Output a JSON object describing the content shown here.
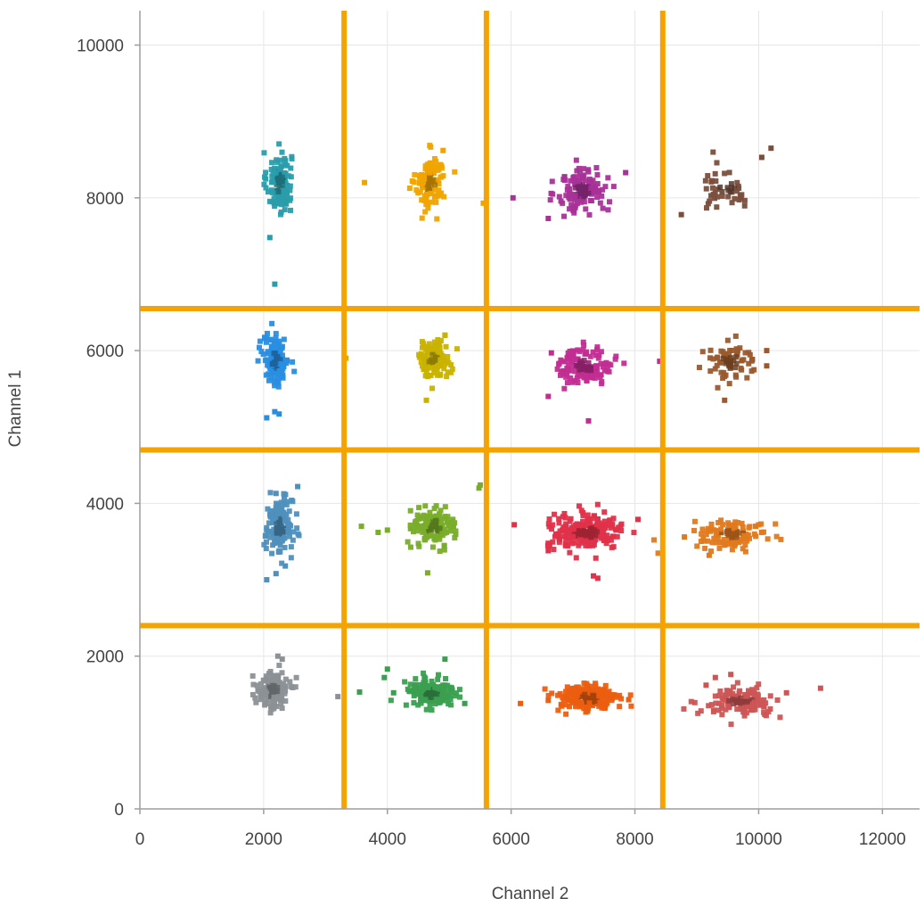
{
  "chart_data": {
    "type": "scatter",
    "title": "",
    "xlabel": "Channel 2",
    "ylabel": "Channel 1",
    "xlim": [
      0,
      12600
    ],
    "ylim": [
      0,
      10450
    ],
    "x_ticks": [
      0,
      2000,
      4000,
      6000,
      8000,
      10000,
      12000
    ],
    "y_ticks": [
      0,
      2000,
      4000,
      6000,
      8000,
      10000
    ],
    "grid": true,
    "legend": "none",
    "threshold_color": "#f5a300",
    "vertical_thresholds": [
      3300,
      5600,
      8450
    ],
    "horizontal_thresholds": [
      2400,
      4700,
      6550
    ],
    "clusters": [
      {
        "cx": 2250,
        "cy": 8200,
        "sx": 100,
        "sy": 200,
        "n": 130,
        "color": "#2a9dab",
        "outliers": [
          [
            2100,
            7480
          ],
          [
            2180,
            6870
          ]
        ]
      },
      {
        "cx": 4700,
        "cy": 8200,
        "sx": 120,
        "sy": 180,
        "n": 110,
        "color": "#f0a400",
        "outliers": [
          [
            3630,
            8200
          ],
          [
            5550,
            7930
          ],
          [
            4900,
            8620
          ]
        ]
      },
      {
        "cx": 7150,
        "cy": 8100,
        "sx": 200,
        "sy": 150,
        "n": 130,
        "color": "#a83298",
        "outliers": [
          [
            6030,
            8000
          ],
          [
            6600,
            7730
          ],
          [
            7850,
            8330
          ]
        ]
      },
      {
        "cx": 9500,
        "cy": 8150,
        "sx": 220,
        "sy": 160,
        "n": 45,
        "color": "#7a4e3c",
        "outliers": [
          [
            10200,
            8650
          ],
          [
            10050,
            8530
          ],
          [
            8750,
            7780
          ]
        ]
      },
      {
        "cx": 2200,
        "cy": 5870,
        "sx": 100,
        "sy": 160,
        "n": 150,
        "color": "#2a8ee0",
        "outliers": [
          [
            2050,
            5120
          ],
          [
            2250,
            5170
          ],
          [
            2180,
            5200
          ]
        ]
      },
      {
        "cx": 4750,
        "cy": 5900,
        "sx": 130,
        "sy": 120,
        "n": 110,
        "color": "#c9b300",
        "outliers": [
          [
            4630,
            5350
          ],
          [
            4930,
            6200
          ],
          [
            3330,
            5900
          ]
        ]
      },
      {
        "cx": 7200,
        "cy": 5800,
        "sx": 220,
        "sy": 120,
        "n": 140,
        "color": "#c22d92",
        "outliers": [
          [
            8400,
            5860
          ],
          [
            7250,
            5080
          ],
          [
            6600,
            5400
          ],
          [
            6650,
            5970
          ]
        ]
      },
      {
        "cx": 9550,
        "cy": 5850,
        "sx": 220,
        "sy": 120,
        "n": 70,
        "color": "#9a5a2e",
        "outliers": [
          [
            10130,
            5800
          ],
          [
            9450,
            5350
          ],
          [
            10130,
            6000
          ]
        ]
      },
      {
        "cx": 2250,
        "cy": 3700,
        "sx": 110,
        "sy": 180,
        "n": 150,
        "color": "#4f90bd",
        "outliers": [
          [
            2050,
            3000
          ],
          [
            2200,
            3080
          ],
          [
            2350,
            3180
          ],
          [
            2550,
            4220
          ],
          [
            2200,
            4130
          ]
        ]
      },
      {
        "cx": 4750,
        "cy": 3700,
        "sx": 170,
        "sy": 120,
        "n": 140,
        "color": "#79ad2a",
        "outliers": [
          [
            3580,
            3700
          ],
          [
            3850,
            3620
          ],
          [
            4000,
            3650
          ],
          [
            4650,
            3090
          ],
          [
            5480,
            4200
          ],
          [
            5500,
            4240
          ]
        ]
      },
      {
        "cx": 7200,
        "cy": 3620,
        "sx": 300,
        "sy": 110,
        "n": 220,
        "color": "#e0324a",
        "outliers": [
          [
            6050,
            3720
          ],
          [
            8050,
            3790
          ],
          [
            7400,
            3020
          ],
          [
            6600,
            3380
          ],
          [
            7330,
            3050
          ]
        ]
      },
      {
        "cx": 9550,
        "cy": 3600,
        "sx": 300,
        "sy": 90,
        "n": 110,
        "color": "#e07a1f",
        "outliers": [
          [
            8800,
            3560
          ],
          [
            9200,
            3320
          ],
          [
            9950,
            3700
          ],
          [
            10050,
            3620
          ]
        ]
      },
      {
        "cx": 2150,
        "cy": 1550,
        "sx": 120,
        "sy": 120,
        "n": 160,
        "color": "#8c9196",
        "outliers": [
          [
            2230,
            2000
          ],
          [
            2300,
            1960
          ],
          [
            3200,
            1470
          ]
        ]
      },
      {
        "cx": 4700,
        "cy": 1520,
        "sx": 200,
        "sy": 100,
        "n": 160,
        "color": "#3aa050",
        "outliers": [
          [
            3550,
            1530
          ],
          [
            3950,
            1720
          ],
          [
            4000,
            1830
          ],
          [
            4100,
            1520
          ],
          [
            5250,
            1380
          ],
          [
            4930,
            1960
          ]
        ]
      },
      {
        "cx": 7250,
        "cy": 1450,
        "sx": 260,
        "sy": 90,
        "n": 180,
        "color": "#ec5e10",
        "outliers": [
          [
            6150,
            1380
          ],
          [
            6600,
            1420
          ],
          [
            7900,
            1430
          ]
        ]
      },
      {
        "cx": 9700,
        "cy": 1400,
        "sx": 300,
        "sy": 90,
        "n": 120,
        "color": "#cc5555",
        "outliers": [
          [
            10450,
            1520
          ],
          [
            11000,
            1580
          ],
          [
            9300,
            1720
          ],
          [
            9150,
            1620
          ],
          [
            9550,
            1760
          ]
        ]
      }
    ]
  }
}
